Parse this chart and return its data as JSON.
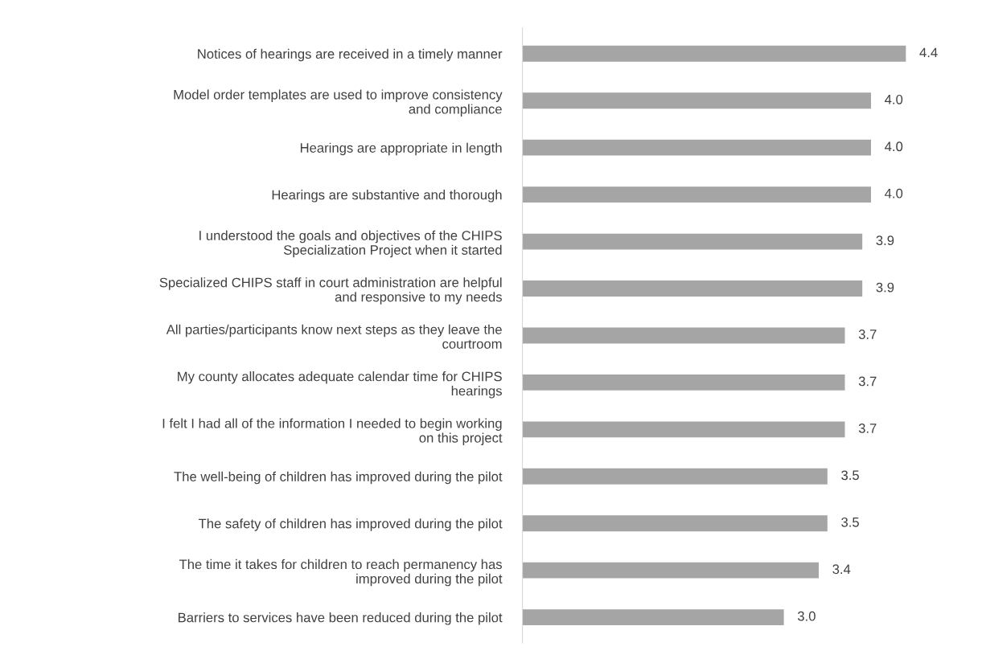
{
  "chart_data": {
    "type": "bar",
    "orientation": "horizontal",
    "categories": [
      "Notices of hearings are received in a timely manner",
      "Model order templates are used to improve consistency\nand compliance",
      "Hearings are appropriate in length",
      "Hearings are substantive and thorough",
      "I understood the goals and objectives of the CHIPS\nSpecialization Project when it started",
      "Specialized CHIPS staff in court administration are helpful\nand responsive to my needs",
      "All parties/participants know next steps as they leave the\ncourtroom",
      "My county allocates adequate calendar time for CHIPS\nhearings",
      "I felt I had all of the information I needed to begin working\non this project",
      "The well-being of children has improved during the pilot",
      "The safety of children has improved during the pilot",
      "The time it takes for children to reach permanency has\nimproved during the pilot",
      "Barriers to services have been reduced during the pilot"
    ],
    "values": [
      4.4,
      4.0,
      4.0,
      4.0,
      3.9,
      3.9,
      3.7,
      3.7,
      3.7,
      3.5,
      3.5,
      3.4,
      3.0
    ],
    "value_labels": [
      "4.4",
      "4.0",
      "4.0",
      "4.0",
      "3.9",
      "3.9",
      "3.7",
      "3.7",
      "3.7",
      "3.5",
      "3.5",
      "3.4",
      "3.0"
    ],
    "color": "#a5a5a5",
    "tick_labels": "y",
    "grid": false,
    "legend": false
  }
}
